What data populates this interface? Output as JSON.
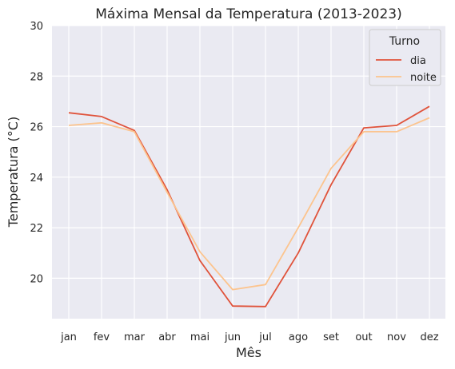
{
  "chart_data": {
    "type": "line",
    "title": "Máxima Mensal da Temperatura (2013-2023)",
    "xlabel": "Mês",
    "ylabel": "Temperatura (°C)",
    "categories": [
      "jan",
      "fev",
      "mar",
      "abr",
      "mai",
      "jun",
      "jul",
      "ago",
      "set",
      "out",
      "nov",
      "dez"
    ],
    "ylim": [
      18.4,
      30
    ],
    "yticks": [
      20,
      22,
      24,
      26,
      28,
      30
    ],
    "grid": true,
    "legend": {
      "title": "Turno",
      "placement": "top-right"
    },
    "series": [
      {
        "name": "dia",
        "color": "#e0533b",
        "values": [
          26.55,
          26.4,
          25.85,
          23.5,
          20.7,
          18.9,
          18.88,
          21.0,
          23.7,
          25.95,
          26.05,
          26.8
        ]
      },
      {
        "name": "noite",
        "color": "#fcc48e",
        "values": [
          26.05,
          26.15,
          25.8,
          23.4,
          21.05,
          19.55,
          19.75,
          22.0,
          24.35,
          25.8,
          25.8,
          26.35
        ]
      }
    ]
  }
}
